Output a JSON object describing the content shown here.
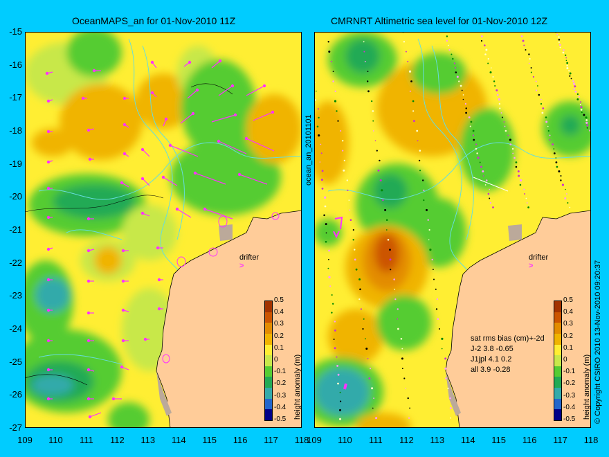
{
  "left_panel": {
    "title": "OceanMAPS_an for 01-Nov-2010 11Z",
    "side_label": "ocean_an_20101101",
    "drifter_label": "drifter"
  },
  "right_panel": {
    "title": "CMRNRT Altimetric sea level  for 01-Nov-2010 12Z",
    "drifter_label": "drifter",
    "stats": {
      "header": "sat rms bias (cm)+-2d",
      "rows": [
        "J-2   3.8 -0.65",
        "J1jpl 4.1 0.2",
        "all 3.9 -0.28"
      ]
    },
    "copyright": "© Copyright CSIRO 2010   13-Nov-2010 09:20:37"
  },
  "axes": {
    "lat_ticks": [
      "-15",
      "-16",
      "-17",
      "-18",
      "-19",
      "-20",
      "-21",
      "-22",
      "-23",
      "-24",
      "-25",
      "-26",
      "-27"
    ],
    "lon_ticks": [
      "109",
      "110",
      "111",
      "112",
      "113",
      "114",
      "115",
      "116",
      "117",
      "118"
    ]
  },
  "colorbar": {
    "label": "height anomaly (m)",
    "ticks": [
      "0.5",
      "0.4",
      "0.3",
      "0.2",
      "0.1",
      "0",
      "-0.1",
      "-0.2",
      "-0.3",
      "-0.4",
      "-0.5"
    ],
    "colors": [
      "#a33300",
      "#cc5500",
      "#e38c00",
      "#f0b400",
      "#ffee33",
      "#c8e84a",
      "#55cc33",
      "#22aa55",
      "#33aaaa",
      "#2266cc",
      "#000088"
    ]
  },
  "colors": {
    "background": "#00ccff",
    "land": "#ffcc99",
    "shallow": "#bba99a",
    "vector": "#ff33ff",
    "contour": "#66dddd"
  }
}
